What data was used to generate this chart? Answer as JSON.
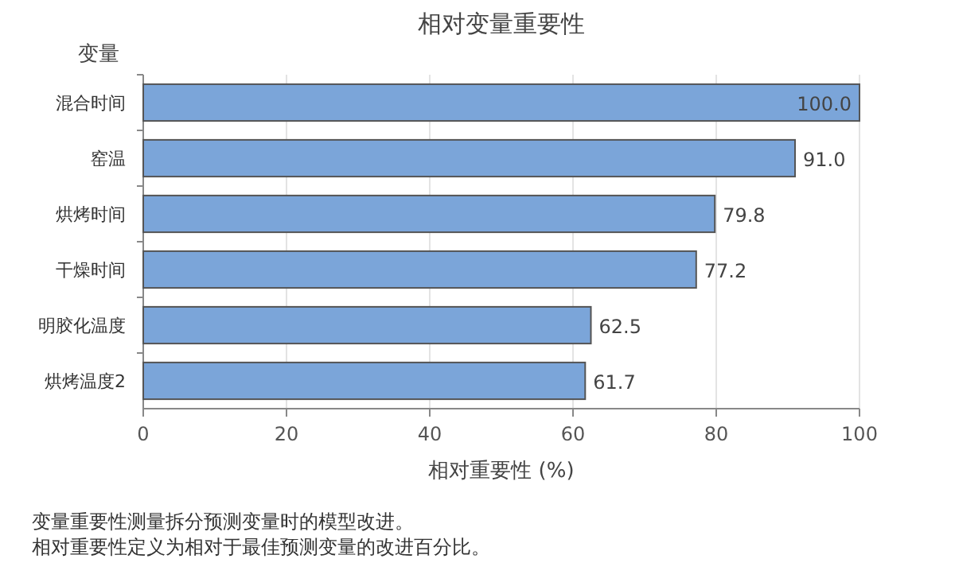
{
  "chart_data": {
    "type": "bar",
    "orientation": "horizontal",
    "title": "相对变量重要性",
    "ylabel": "变量",
    "xlabel": "相对重要性 (%)",
    "categories": [
      "混合时间",
      "窑温",
      "烘烤时间",
      "干燥时间",
      "明胶化温度",
      "烘烤温度2"
    ],
    "values": [
      100.0,
      91.0,
      79.8,
      77.2,
      62.5,
      61.7
    ],
    "value_labels": [
      "100.0",
      "91.0",
      "79.8",
      "77.2",
      "62.5",
      "61.7"
    ],
    "color": "#7ba5d9",
    "xlim": [
      0,
      100
    ],
    "xticks": [
      0,
      20,
      40,
      60,
      80,
      100
    ],
    "grid": "x",
    "annotations": [
      "变量重要性测量拆分预测变量时的模型改进。",
      "相对重要性定义为相对于最佳预测变量的改进百分比。"
    ]
  }
}
